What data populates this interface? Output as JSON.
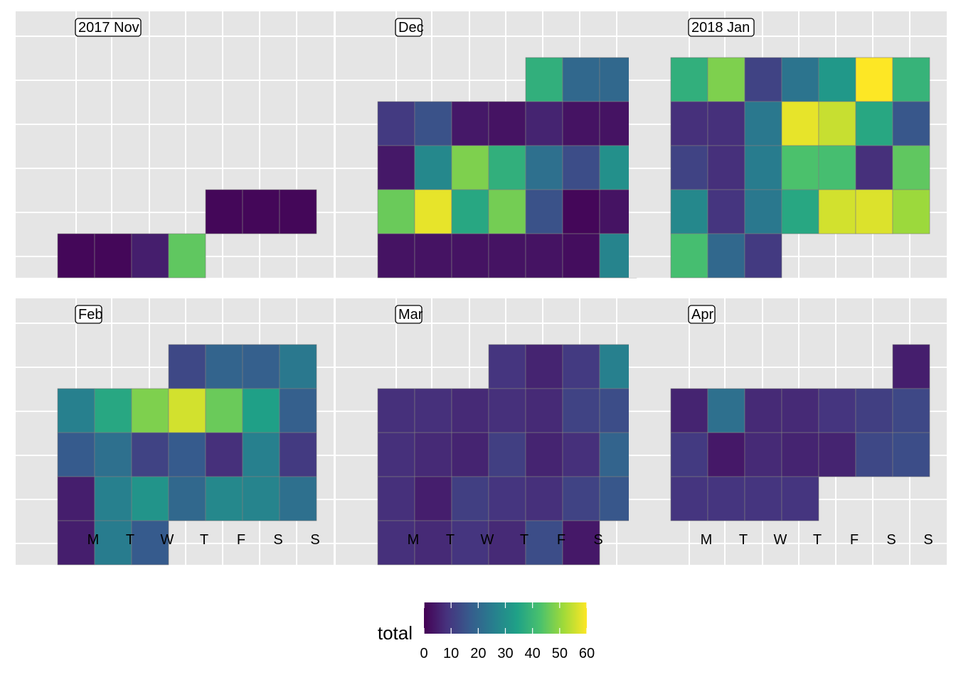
{
  "chart_data": {
    "type": "heatmap",
    "subtype": "calendar",
    "title": "",
    "xlabel": "",
    "ylabel": "",
    "grid": true,
    "weekday_labels": [
      "M",
      "T",
      "W",
      "T",
      "F",
      "S",
      "S"
    ],
    "legend": {
      "title": "total",
      "placement": "bottom",
      "range": [
        0,
        60
      ],
      "ticks": [
        0,
        10,
        20,
        30,
        40,
        50,
        60
      ],
      "palette": "viridis"
    },
    "palette_colors": [
      "#440154",
      "#46337e",
      "#365c8d",
      "#277f8e",
      "#1fa187",
      "#4ac16d",
      "#a0da39",
      "#fde725"
    ],
    "panels": [
      {
        "label": "2017 Nov",
        "weeks": [
          [
            null,
            null,
            null,
            null,
            null,
            null,
            null
          ],
          [
            null,
            null,
            null,
            null,
            null,
            null,
            null
          ],
          [
            null,
            null,
            null,
            null,
            null,
            null,
            null
          ],
          [
            null,
            null,
            null,
            null,
            1,
            1,
            1
          ],
          [
            1,
            1,
            5,
            45,
            null,
            null,
            null
          ]
        ]
      },
      {
        "label": "Dec",
        "weeks": [
          [
            null,
            null,
            null,
            null,
            null,
            38,
            20,
            20
          ],
          [
            null,
            10,
            15,
            4,
            3,
            6,
            3,
            3
          ],
          [
            null,
            4,
            28,
            48,
            38,
            22,
            14,
            30
          ],
          [
            null,
            46,
            58,
            36,
            47,
            15,
            1,
            3
          ],
          [
            null,
            3,
            3,
            3,
            3,
            3,
            2,
            27
          ]
        ]
      },
      {
        "label": "2018 Jan",
        "weeks": [
          [
            38,
            48,
            12,
            23,
            32,
            60,
            39
          ],
          [
            8,
            8,
            24,
            58,
            55,
            36,
            16
          ],
          [
            12,
            8,
            25,
            43,
            42,
            8,
            45
          ],
          [
            28,
            9,
            24,
            36,
            56,
            57,
            51
          ],
          [
            42,
            20,
            10,
            null,
            null,
            null,
            null
          ]
        ]
      },
      {
        "label": "Feb",
        "weeks": [
          [
            null,
            null,
            null,
            13,
            19,
            18,
            24
          ],
          [
            26,
            36,
            48,
            56,
            46,
            34,
            18
          ],
          [
            17,
            22,
            12,
            17,
            8,
            26,
            10
          ],
          [
            5,
            26,
            31,
            20,
            28,
            27,
            22
          ],
          [
            5,
            25,
            17,
            null,
            null,
            null,
            null
          ]
        ]
      },
      {
        "label": "Mar",
        "weeks": [
          [
            null,
            null,
            null,
            null,
            9,
            6,
            10,
            26
          ],
          [
            null,
            8,
            8,
            7,
            8,
            7,
            12,
            14
          ],
          [
            null,
            8,
            7,
            6,
            11,
            6,
            8,
            19
          ],
          [
            null,
            8,
            5,
            11,
            9,
            8,
            12,
            16
          ],
          [
            null,
            8,
            7,
            9,
            7,
            14,
            4,
            null
          ]
        ]
      },
      {
        "label": "Apr",
        "weeks": [
          [
            null,
            null,
            null,
            null,
            null,
            null,
            5
          ],
          [
            6,
            22,
            7,
            7,
            9,
            11,
            13
          ],
          [
            10,
            4,
            7,
            6,
            6,
            13,
            14
          ],
          [
            9,
            9,
            9,
            9,
            null,
            null,
            null
          ],
          [
            null,
            null,
            null,
            null,
            null,
            null,
            null
          ]
        ]
      }
    ]
  }
}
